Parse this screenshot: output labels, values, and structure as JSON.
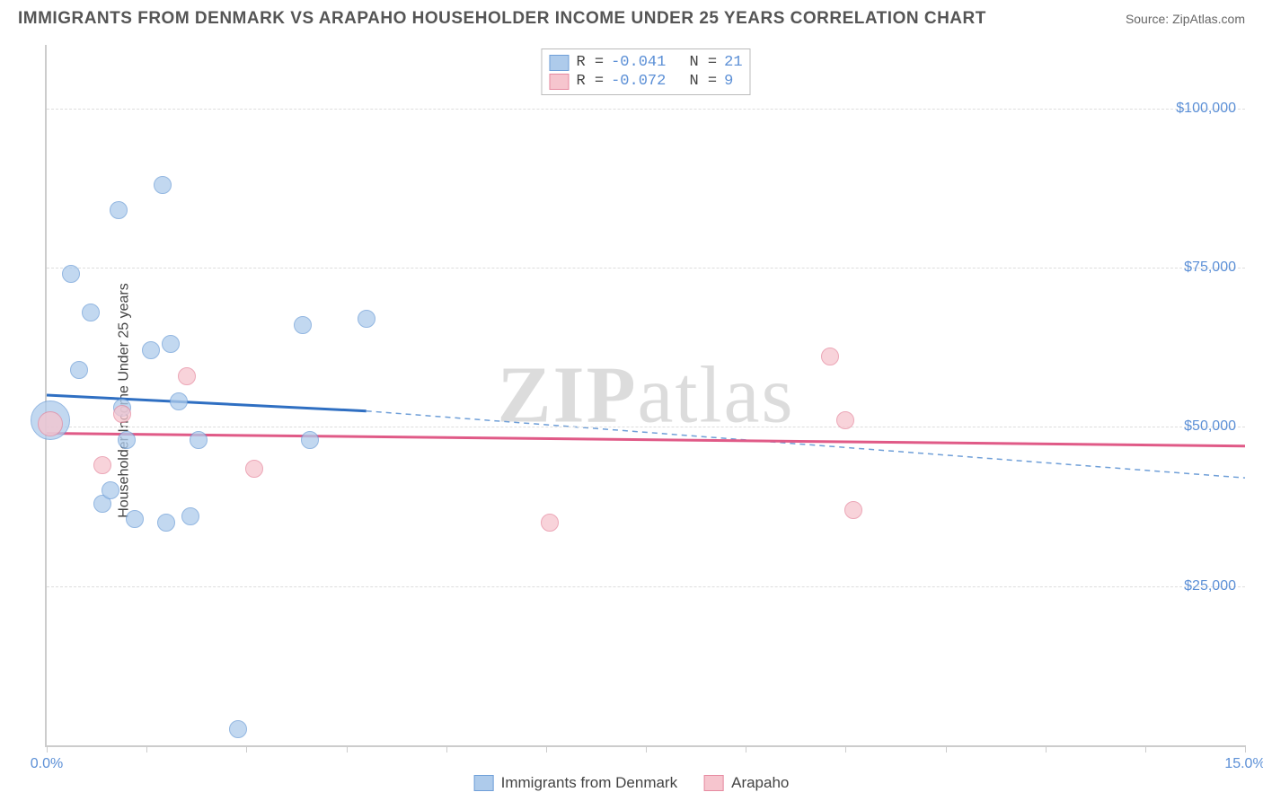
{
  "header": {
    "title": "IMMIGRANTS FROM DENMARK VS ARAPAHO HOUSEHOLDER INCOME UNDER 25 YEARS CORRELATION CHART",
    "source_prefix": "Source: ",
    "source": "ZipAtlas.com"
  },
  "watermark": {
    "part1": "ZIP",
    "part2": "atlas"
  },
  "chart": {
    "type": "scatter",
    "ylabel": "Householder Income Under 25 years",
    "xlim": [
      0.0,
      15.0
    ],
    "ylim": [
      0,
      110000
    ],
    "y_ticks": [
      25000,
      50000,
      75000,
      100000
    ],
    "y_tick_labels": [
      "$25,000",
      "$50,000",
      "$75,000",
      "$100,000"
    ],
    "x_ticks": [
      0.0,
      1.25,
      2.5,
      3.75,
      5.0,
      6.25,
      7.5,
      8.75,
      10.0,
      11.25,
      12.5,
      13.75,
      15.0
    ],
    "x_tick_labels_shown": {
      "0.0": "0.0%",
      "15.0": "15.0%"
    },
    "background_color": "#ffffff",
    "grid_color": "#dddddd",
    "axis_color": "#cccccc",
    "tick_label_color": "#5b8fd6",
    "series": [
      {
        "name": "Immigrants from Denmark",
        "color_fill": "#aecbeb",
        "color_stroke": "#6f9fd8",
        "marker_radius": 10,
        "opacity": 0.75,
        "R": "-0.041",
        "N": "21",
        "trend": {
          "solid": {
            "x1": 0.0,
            "y1": 55000,
            "x2": 4.0,
            "y2": 52500,
            "color": "#2f6fc2",
            "width": 3
          },
          "dashed": {
            "x1": 4.0,
            "y1": 52500,
            "x2": 15.0,
            "y2": 42000,
            "color": "#6f9fd8",
            "width": 1.5,
            "dash": "6,5"
          }
        },
        "points": [
          {
            "x": 0.05,
            "y": 51000,
            "r": 22
          },
          {
            "x": 0.3,
            "y": 74000
          },
          {
            "x": 0.4,
            "y": 59000
          },
          {
            "x": 0.55,
            "y": 68000
          },
          {
            "x": 0.7,
            "y": 38000
          },
          {
            "x": 0.8,
            "y": 40000
          },
          {
            "x": 0.9,
            "y": 84000
          },
          {
            "x": 0.95,
            "y": 53000
          },
          {
            "x": 1.0,
            "y": 48000
          },
          {
            "x": 1.1,
            "y": 35500
          },
          {
            "x": 1.3,
            "y": 62000
          },
          {
            "x": 1.45,
            "y": 88000
          },
          {
            "x": 1.55,
            "y": 63000
          },
          {
            "x": 1.5,
            "y": 35000
          },
          {
            "x": 1.65,
            "y": 54000
          },
          {
            "x": 1.8,
            "y": 36000
          },
          {
            "x": 1.9,
            "y": 48000
          },
          {
            "x": 2.4,
            "y": 2500
          },
          {
            "x": 3.2,
            "y": 66000
          },
          {
            "x": 3.3,
            "y": 48000
          },
          {
            "x": 4.0,
            "y": 67000
          }
        ]
      },
      {
        "name": "Arapaho",
        "color_fill": "#f6c5ce",
        "color_stroke": "#e68aa0",
        "marker_radius": 10,
        "opacity": 0.75,
        "R": "-0.072",
        "N": "9",
        "trend": {
          "solid": {
            "x1": 0.0,
            "y1": 49000,
            "x2": 15.0,
            "y2": 47000,
            "color": "#e05a87",
            "width": 3
          }
        },
        "points": [
          {
            "x": 0.05,
            "y": 50500,
            "r": 14
          },
          {
            "x": 0.7,
            "y": 44000
          },
          {
            "x": 0.95,
            "y": 52000
          },
          {
            "x": 1.75,
            "y": 58000
          },
          {
            "x": 2.6,
            "y": 43500
          },
          {
            "x": 6.3,
            "y": 35000
          },
          {
            "x": 9.8,
            "y": 61000
          },
          {
            "x": 10.0,
            "y": 51000
          },
          {
            "x": 10.1,
            "y": 37000
          }
        ]
      }
    ]
  },
  "legend_top_labels": {
    "R": "R =",
    "N": "N ="
  },
  "legend_bottom": {
    "items": [
      {
        "label": "Immigrants from Denmark",
        "fill": "#aecbeb",
        "stroke": "#6f9fd8"
      },
      {
        "label": "Arapaho",
        "fill": "#f6c5ce",
        "stroke": "#e68aa0"
      }
    ]
  }
}
